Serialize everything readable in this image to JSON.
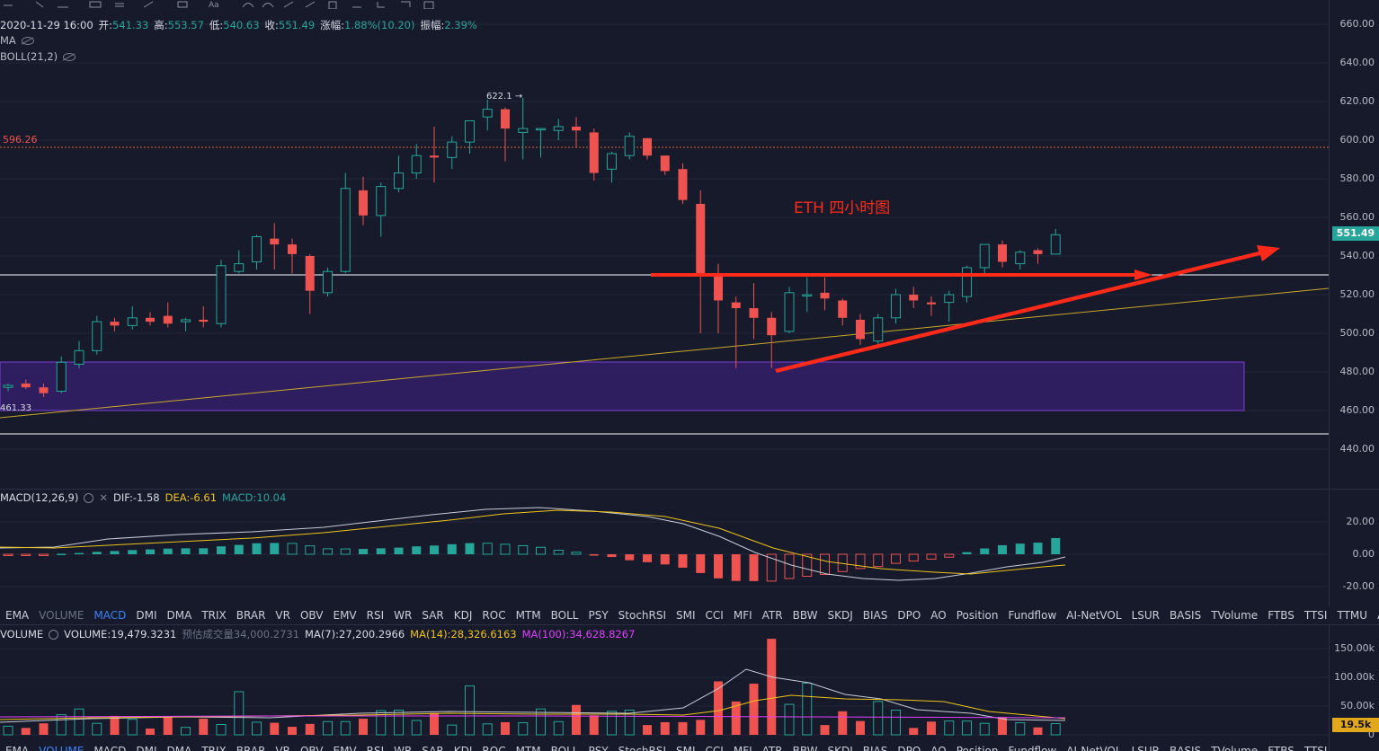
{
  "header": {
    "datetime": "2020-11-29 16:00",
    "open_label": "开:",
    "open": "541.33",
    "high_label": "高:",
    "high": "553.57",
    "low_label": "低:",
    "low": "540.63",
    "close_label": "收:",
    "close": "551.49",
    "change_label": "涨幅:",
    "change": "1.88%(10.20)",
    "amp_label": "振幅:",
    "amp": "2.39%"
  },
  "indicators": {
    "ma": "MA",
    "boll": "BOLL(21,2)"
  },
  "price_axis": [
    "660.00",
    "640.00",
    "620.00",
    "600.00",
    "580.00",
    "560.00",
    "540.00",
    "520.00",
    "500.00",
    "480.00",
    "460.00",
    "440.00"
  ],
  "last_price": "551.49",
  "last_price_color": "#26a69a",
  "annotations": {
    "title": "ETH  四小时图",
    "high_marker": "622.1",
    "level_596": "596.26",
    "level_461": "461.33"
  },
  "macd": {
    "label": "MACD(12,26,9)",
    "dif_label": "DIF:",
    "dif": "-1.58",
    "dea_label": "DEA:",
    "dea": "-6.61",
    "macd_label": "MACD:",
    "macd": "10.04",
    "axis": [
      "20.00",
      "0.00",
      "-20.00"
    ]
  },
  "tabs": [
    "EMA",
    "VOLUME",
    "MACD",
    "DMI",
    "DMA",
    "TRIX",
    "BRAR",
    "VR",
    "OBV",
    "EMV",
    "RSI",
    "WR",
    "SAR",
    "KDJ",
    "ROC",
    "MTM",
    "BOLL",
    "PSY",
    "StochRSI",
    "SMI",
    "CCI",
    "MFI",
    "ATR",
    "BBW",
    "SKDJ",
    "BIAS",
    "DPO",
    "AO",
    "Position",
    "Fundflow",
    "AI-NetVOL",
    "LSUR",
    "BASIS",
    "TVolume",
    "FTBS",
    "TTSI",
    "TTMU",
    "AI-BSI"
  ],
  "active_tab": "MACD",
  "volume": {
    "label": "VOLUME",
    "vol_label": "VOLUME:",
    "vol": "19,479.3231",
    "est_label": "预估成交量",
    "est": "34,000.2731",
    "ma7_label": "MA(7):",
    "ma7": "27,200.2966",
    "ma14_label": "MA(14):",
    "ma14": "28,326.6163",
    "ma100_label": "MA(100):",
    "ma100": "34,628.8267",
    "axis": [
      "150.00k",
      "100.00k",
      "50.00k",
      "0"
    ],
    "last": "19.5k"
  },
  "colors": {
    "up": "#26a69a",
    "down": "#ef5350",
    "bg": "#161a2b",
    "zone": "#3a1f6e",
    "annot": "#ff2a1a"
  },
  "chart_data": {
    "type": "candlestick",
    "candles": [
      {
        "o": 472,
        "h": 474,
        "l": 470,
        "c": 473
      },
      {
        "o": 474,
        "h": 476,
        "l": 471,
        "c": 472
      },
      {
        "o": 472,
        "h": 474,
        "l": 467,
        "c": 469
      },
      {
        "o": 470,
        "h": 488,
        "l": 469,
        "c": 485
      },
      {
        "o": 484,
        "h": 496,
        "l": 482,
        "c": 491
      },
      {
        "o": 491,
        "h": 509,
        "l": 489,
        "c": 506
      },
      {
        "o": 506,
        "h": 508,
        "l": 501,
        "c": 504
      },
      {
        "o": 504,
        "h": 514,
        "l": 502,
        "c": 508
      },
      {
        "o": 508,
        "h": 511,
        "l": 504,
        "c": 506
      },
      {
        "o": 509,
        "h": 516,
        "l": 503,
        "c": 505
      },
      {
        "o": 506,
        "h": 508,
        "l": 501,
        "c": 507
      },
      {
        "o": 507,
        "h": 514,
        "l": 503,
        "c": 506
      },
      {
        "o": 505,
        "h": 538,
        "l": 503,
        "c": 535
      },
      {
        "o": 532,
        "h": 543,
        "l": 531,
        "c": 536
      },
      {
        "o": 537,
        "h": 551,
        "l": 533,
        "c": 550
      },
      {
        "o": 549,
        "h": 557,
        "l": 533,
        "c": 546
      },
      {
        "o": 546,
        "h": 549,
        "l": 531,
        "c": 541
      },
      {
        "o": 540,
        "h": 541,
        "l": 510,
        "c": 522
      },
      {
        "o": 521,
        "h": 534,
        "l": 519,
        "c": 532
      },
      {
        "o": 532,
        "h": 583,
        "l": 531,
        "c": 575
      },
      {
        "o": 574,
        "h": 581,
        "l": 556,
        "c": 561
      },
      {
        "o": 561,
        "h": 578,
        "l": 550,
        "c": 576
      },
      {
        "o": 575,
        "h": 592,
        "l": 573,
        "c": 583
      },
      {
        "o": 583,
        "h": 598,
        "l": 580,
        "c": 592
      },
      {
        "o": 592,
        "h": 607,
        "l": 578,
        "c": 591
      },
      {
        "o": 591,
        "h": 602,
        "l": 585,
        "c": 599
      },
      {
        "o": 599,
        "h": 610,
        "l": 593,
        "c": 610
      },
      {
        "o": 612,
        "h": 621,
        "l": 605,
        "c": 616
      },
      {
        "o": 616,
        "h": 617,
        "l": 589,
        "c": 606
      },
      {
        "o": 604,
        "h": 622,
        "l": 590,
        "c": 606
      },
      {
        "o": 606,
        "h": 606,
        "l": 591,
        "c": 606
      },
      {
        "o": 605,
        "h": 611,
        "l": 600,
        "c": 607
      },
      {
        "o": 607,
        "h": 612,
        "l": 596,
        "c": 605
      },
      {
        "o": 604,
        "h": 606,
        "l": 579,
        "c": 583
      },
      {
        "o": 585,
        "h": 594,
        "l": 578,
        "c": 593
      },
      {
        "o": 592,
        "h": 604,
        "l": 590,
        "c": 602
      },
      {
        "o": 601,
        "h": 601,
        "l": 590,
        "c": 592
      },
      {
        "o": 592,
        "h": 592,
        "l": 582,
        "c": 584
      },
      {
        "o": 585,
        "h": 588,
        "l": 567,
        "c": 569
      },
      {
        "o": 567,
        "h": 574,
        "l": 500,
        "c": 531
      },
      {
        "o": 531,
        "h": 536,
        "l": 500,
        "c": 517
      },
      {
        "o": 516,
        "h": 519,
        "l": 482,
        "c": 513
      },
      {
        "o": 513,
        "h": 526,
        "l": 497,
        "c": 508
      },
      {
        "o": 508,
        "h": 511,
        "l": 482,
        "c": 499
      },
      {
        "o": 501,
        "h": 524,
        "l": 500,
        "c": 521
      },
      {
        "o": 520,
        "h": 529,
        "l": 511,
        "c": 520
      },
      {
        "o": 521,
        "h": 529,
        "l": 512,
        "c": 518
      },
      {
        "o": 517,
        "h": 518,
        "l": 504,
        "c": 508
      },
      {
        "o": 507,
        "h": 510,
        "l": 494,
        "c": 497
      },
      {
        "o": 496,
        "h": 510,
        "l": 494,
        "c": 508
      },
      {
        "o": 508,
        "h": 523,
        "l": 505,
        "c": 520
      },
      {
        "o": 520,
        "h": 524,
        "l": 513,
        "c": 517
      },
      {
        "o": 516,
        "h": 519,
        "l": 509,
        "c": 515
      },
      {
        "o": 516,
        "h": 522,
        "l": 506,
        "c": 520
      },
      {
        "o": 519,
        "h": 535,
        "l": 516,
        "c": 534
      },
      {
        "o": 534,
        "h": 546,
        "l": 530,
        "c": 546
      },
      {
        "o": 546,
        "h": 548,
        "l": 534,
        "c": 537
      },
      {
        "o": 536,
        "h": 543,
        "l": 533,
        "c": 542
      },
      {
        "o": 543,
        "h": 544,
        "l": 536,
        "c": 541
      },
      {
        "o": 541,
        "h": 554,
        "l": 541,
        "c": 551
      }
    ],
    "macd_hist": [
      -0.5,
      -0.3,
      -0.2,
      0.3,
      0.8,
      1.5,
      2,
      2.6,
      3,
      3.5,
      3.7,
      3.7,
      4.9,
      5.8,
      6.8,
      7,
      6.7,
      5.2,
      3.4,
      3.3,
      3.3,
      3.7,
      4.1,
      4.9,
      5.4,
      6.2,
      6.9,
      6.8,
      6.2,
      5.3,
      4.3,
      2.5,
      1.3,
      -0.2,
      -1.7,
      -3.7,
      -4.9,
      -6.3,
      -8.3,
      -11.6,
      -14.9,
      -16.5,
      -16.6,
      -16.6,
      -15,
      -13.6,
      -12.5,
      -10.7,
      -8.8,
      -7.6,
      -5.6,
      -4.2,
      -3,
      -1.8,
      1.3,
      3.6,
      5.6,
      6.6,
      7.2,
      10.04
    ],
    "volume_k": [
      15,
      12,
      20,
      35,
      45,
      20,
      33,
      27,
      11,
      32,
      13,
      28,
      18,
      75,
      22,
      21,
      14,
      19,
      23,
      23,
      28,
      42,
      43,
      25,
      38,
      17,
      85,
      19,
      22,
      21,
      45,
      23,
      52,
      34,
      41,
      43,
      17,
      22,
      22,
      26,
      93,
      58,
      89,
      167,
      53,
      90,
      17,
      41,
      24,
      58,
      43,
      12,
      23,
      24,
      24,
      20,
      31,
      21,
      13,
      19.5
    ]
  }
}
